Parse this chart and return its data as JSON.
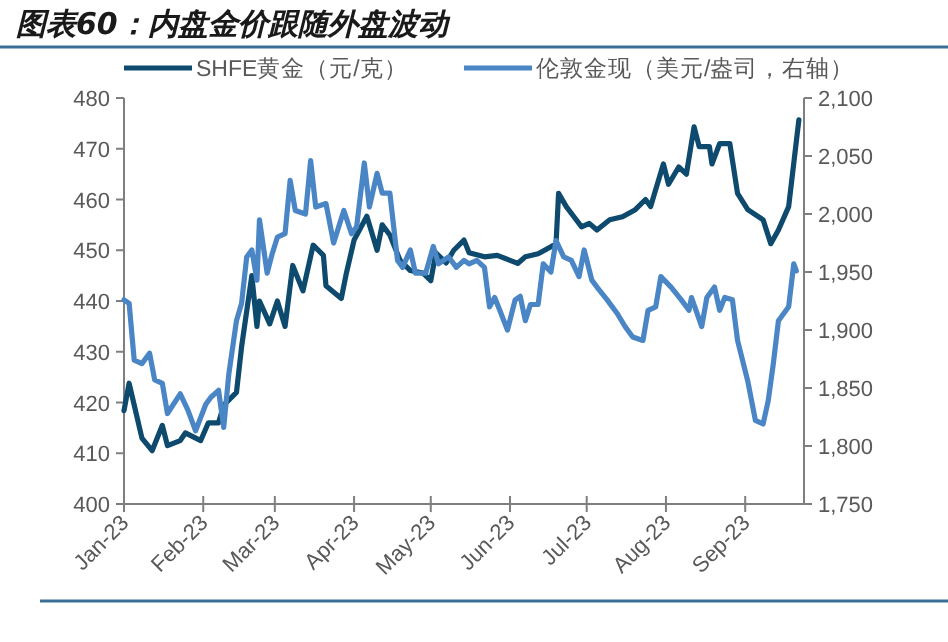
{
  "chart_data": {
    "type": "line",
    "title": "图表60：内盘金价跟随外盘波动",
    "legend": "top",
    "grid": false,
    "xlim": [
      "2023-01-01",
      "2023-09-24"
    ],
    "xticks": [
      {
        "value": "2023-01-01",
        "label": "Jan-23"
      },
      {
        "value": "2023-02-01",
        "label": "Feb-23"
      },
      {
        "value": "2023-03-01",
        "label": "Mar-23"
      },
      {
        "value": "2023-04-01",
        "label": "Apr-23"
      },
      {
        "value": "2023-05-01",
        "label": "May-23"
      },
      {
        "value": "2023-06-01",
        "label": "Jun-23"
      },
      {
        "value": "2023-07-01",
        "label": "Jul-23"
      },
      {
        "value": "2023-08-01",
        "label": "Aug-23"
      },
      {
        "value": "2023-09-01",
        "label": "Sep-23"
      }
    ],
    "ylim": [
      400,
      480
    ],
    "yticks": [
      400,
      410,
      420,
      430,
      440,
      450,
      460,
      470,
      480
    ],
    "y2lim": [
      1750,
      2100
    ],
    "y2ticks": [
      {
        "value": 1750,
        "label": "1,750"
      },
      {
        "value": 1800,
        "label": "1,800"
      },
      {
        "value": 1850,
        "label": "1,850"
      },
      {
        "value": 1900,
        "label": "1,900"
      },
      {
        "value": 1950,
        "label": "1,950"
      },
      {
        "value": 2000,
        "label": "2,000"
      },
      {
        "value": 2050,
        "label": "2,050"
      },
      {
        "value": 2100,
        "label": "2,100"
      }
    ],
    "series": [
      {
        "name": "SHFE黄金（元/克）",
        "color": "#0d4a6e",
        "x": [
          "2023-01-01",
          "2023-01-03",
          "2023-01-05",
          "2023-01-08",
          "2023-01-12",
          "2023-01-16",
          "2023-01-18",
          "2023-01-23",
          "2023-01-25",
          "2023-01-31",
          "2023-02-03",
          "2023-02-07",
          "2023-02-09",
          "2023-02-14",
          "2023-02-16",
          "2023-02-20",
          "2023-02-22",
          "2023-02-23",
          "2023-02-27",
          "2023-03-02",
          "2023-03-05",
          "2023-03-08",
          "2023-03-12",
          "2023-03-16",
          "2023-03-20",
          "2023-03-21",
          "2023-03-27",
          "2023-03-29",
          "2023-04-01",
          "2023-04-06",
          "2023-04-10",
          "2023-04-12",
          "2023-04-15",
          "2023-04-19",
          "2023-04-23",
          "2023-04-28",
          "2023-05-01",
          "2023-05-03",
          "2023-05-07",
          "2023-05-10",
          "2023-05-14",
          "2023-05-16",
          "2023-05-22",
          "2023-05-27",
          "2023-06-01",
          "2023-06-04",
          "2023-06-07",
          "2023-06-12",
          "2023-06-17",
          "2023-06-19",
          "2023-06-20",
          "2023-06-23",
          "2023-06-26",
          "2023-06-29",
          "2023-07-02",
          "2023-07-05",
          "2023-07-10",
          "2023-07-15",
          "2023-07-20",
          "2023-07-24",
          "2023-07-26",
          "2023-07-31",
          "2023-08-02",
          "2023-08-06",
          "2023-08-09",
          "2023-08-12",
          "2023-08-14",
          "2023-08-18",
          "2023-08-19",
          "2023-08-22",
          "2023-08-26",
          "2023-08-29",
          "2023-09-02",
          "2023-09-08",
          "2023-09-11",
          "2023-09-14",
          "2023-09-18",
          "2023-09-22"
        ],
        "values": [
          418.4,
          423.8,
          419.5,
          413,
          410.5,
          415.5,
          411.5,
          412.5,
          414,
          412.5,
          416,
          416,
          419.5,
          422,
          431,
          445,
          435,
          440,
          435.5,
          440,
          435,
          447,
          442,
          451,
          449,
          443,
          440.5,
          445.5,
          452,
          456.7,
          450,
          455,
          453,
          448,
          446,
          445.5,
          444,
          449.5,
          447.5,
          450,
          452,
          449.5,
          448.7,
          449,
          448,
          447.4,
          448.7,
          449.3,
          450.7,
          451.3,
          461.2,
          458.6,
          456.6,
          454.6,
          455.3,
          454,
          456,
          456.6,
          458,
          460,
          458.6,
          467,
          463,
          466.4,
          465,
          474.3,
          470.4,
          470.4,
          467,
          471,
          471,
          461.2,
          458,
          456,
          451.3,
          454,
          458.6,
          475.7
        ]
      },
      {
        "name": "伦敦金现（美元/盎司，右轴）",
        "color": "#4a86c5",
        "axis": "y2",
        "x": [
          "2023-01-01",
          "2023-01-03",
          "2023-01-05",
          "2023-01-08",
          "2023-01-11",
          "2023-01-13",
          "2023-01-16",
          "2023-01-18",
          "2023-01-23",
          "2023-01-26",
          "2023-01-29",
          "2023-02-02",
          "2023-02-04",
          "2023-02-07",
          "2023-02-09",
          "2023-02-11",
          "2023-02-14",
          "2023-02-16",
          "2023-02-18",
          "2023-02-20",
          "2023-02-22",
          "2023-02-23",
          "2023-02-26",
          "2023-02-28",
          "2023-03-02",
          "2023-03-05",
          "2023-03-07",
          "2023-03-09",
          "2023-03-13",
          "2023-03-15",
          "2023-03-17",
          "2023-03-21",
          "2023-03-24",
          "2023-03-28",
          "2023-03-31",
          "2023-04-02",
          "2023-04-05",
          "2023-04-07",
          "2023-04-10",
          "2023-04-12",
          "2023-04-15",
          "2023-04-18",
          "2023-04-20",
          "2023-04-23",
          "2023-04-25",
          "2023-04-29",
          "2023-05-02",
          "2023-05-04",
          "2023-05-08",
          "2023-05-11",
          "2023-05-14",
          "2023-05-16",
          "2023-05-19",
          "2023-05-22",
          "2023-05-24",
          "2023-05-26",
          "2023-05-28",
          "2023-05-31",
          "2023-06-03",
          "2023-06-05",
          "2023-06-07",
          "2023-06-09",
          "2023-06-12",
          "2023-06-14",
          "2023-06-17",
          "2023-06-19",
          "2023-06-22",
          "2023-06-25",
          "2023-06-28",
          "2023-06-30",
          "2023-07-03",
          "2023-07-05",
          "2023-07-09",
          "2023-07-13",
          "2023-07-16",
          "2023-07-19",
          "2023-07-23",
          "2023-07-25",
          "2023-07-28",
          "2023-07-30",
          "2023-08-03",
          "2023-08-07",
          "2023-08-10",
          "2023-08-11",
          "2023-08-15",
          "2023-08-17",
          "2023-08-20",
          "2023-08-22",
          "2023-08-24",
          "2023-08-27",
          "2023-08-29",
          "2023-09-02",
          "2023-09-05",
          "2023-09-08",
          "2023-09-10",
          "2023-09-12",
          "2023-09-14",
          "2023-09-18",
          "2023-09-20",
          "2023-09-21"
        ],
        "values": [
          1926,
          1923,
          1874,
          1871,
          1880,
          1857,
          1854,
          1828,
          1845,
          1831,
          1813,
          1836,
          1842,
          1848,
          1816,
          1862,
          1908,
          1923,
          1963,
          1969,
          1943,
          1995,
          1949,
          1966,
          1980,
          1983,
          2029,
          2003,
          2000,
          2046,
          2006,
          2009,
          1975,
          2003,
          1983,
          1989,
          2044,
          2006,
          2035,
          2018,
          2018,
          1960,
          1954,
          1969,
          1949,
          1949,
          1972,
          1957,
          1963,
          1954,
          1960,
          1957,
          1960,
          1954,
          1920,
          1928,
          1917,
          1900,
          1926,
          1929,
          1908,
          1922,
          1922,
          1957,
          1950,
          1977,
          1963,
          1960,
          1946,
          1969,
          1943,
          1937,
          1926,
          1914,
          1903,
          1894,
          1891,
          1917,
          1920,
          1946,
          1937,
          1926,
          1917,
          1928,
          1903,
          1928,
          1937,
          1917,
          1928,
          1926,
          1891,
          1856,
          1822,
          1819,
          1839,
          1871,
          1908,
          1920,
          1957,
          1951
        ]
      }
    ]
  }
}
